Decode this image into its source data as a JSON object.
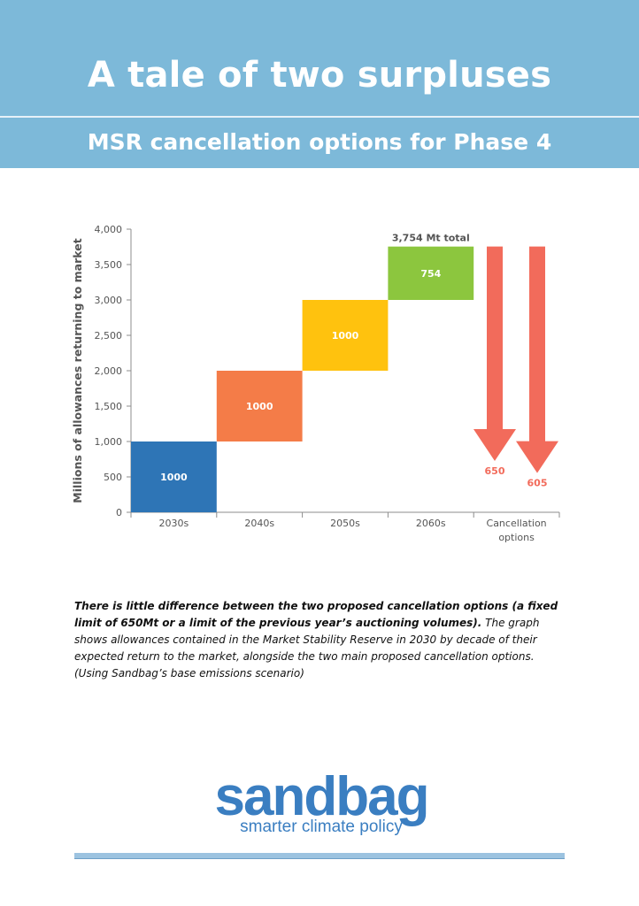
{
  "header": {
    "title": "A tale of two surpluses",
    "subtitle": "MSR cancellation options for Phase 4"
  },
  "chart_data": {
    "type": "bar",
    "ylabel": "Millions of allowances returning to market",
    "ylim": [
      0,
      4000
    ],
    "yticks": [
      0,
      500,
      1000,
      1500,
      2000,
      2500,
      3000,
      3500,
      4000
    ],
    "ytick_labels": [
      "0",
      "500",
      "1,000",
      "1,500",
      "2,000",
      "2,500",
      "3,000",
      "3,500",
      "4,000"
    ],
    "categories": [
      "2030s",
      "2040s",
      "2050s",
      "2060s",
      "Cancellation options"
    ],
    "waterfall": [
      {
        "category": "2030s",
        "start": 0,
        "value": 1000,
        "label": "1000",
        "color": "#2e75b6"
      },
      {
        "category": "2040s",
        "start": 1000,
        "value": 1000,
        "label": "1000",
        "color": "#f47c48"
      },
      {
        "category": "2050s",
        "start": 2000,
        "value": 1000,
        "label": "1000",
        "color": "#ffc20e"
      },
      {
        "category": "2060s",
        "start": 3000,
        "value": 754,
        "label": "754",
        "color": "#8cc63e"
      }
    ],
    "total_label": "3,754 Mt total",
    "cancellation_arrows": [
      {
        "value": 650,
        "label": "650",
        "top": 3754,
        "tip": 650,
        "color": "#f26b5b"
      },
      {
        "value": 605,
        "label": "605",
        "top": 3754,
        "tip": 605,
        "color": "#f26b5b"
      }
    ]
  },
  "caption": {
    "bold": "There is little difference between the two proposed cancellation options (a fixed limit of 650Mt or a limit of the previous year’s auctioning volumes).",
    "text": " The graph shows allowances contained in the Market Stability Reserve in 2030 by decade of their expected return to the market, alongside the two main proposed cancellation options. (Using Sandbag’s base emissions scenario)"
  },
  "logo": {
    "wordmark": "sandbag",
    "tagline": "smarter climate policy"
  },
  "colors": {
    "banner": "#7db9d9",
    "brand": "#3a7ec1",
    "arrow": "#f26b5b"
  }
}
